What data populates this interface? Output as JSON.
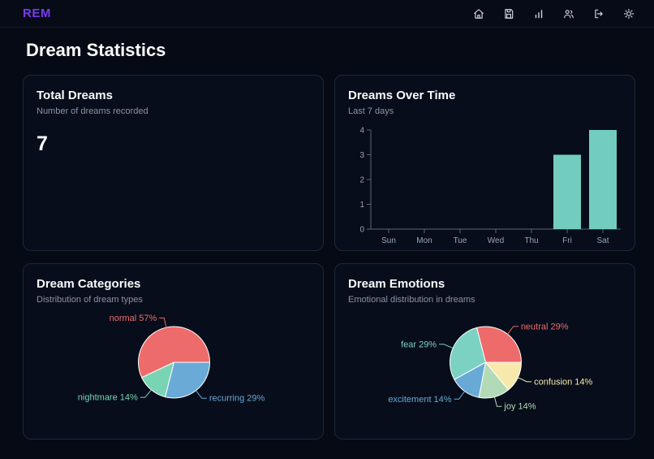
{
  "header": {
    "logo": "REM",
    "nav_icons": [
      "home-icon",
      "journal-icon",
      "stats-icon",
      "community-icon",
      "logout-icon",
      "theme-icon"
    ]
  },
  "page_title": "Dream Statistics",
  "cards": {
    "total": {
      "title": "Total Dreams",
      "subtitle": "Number of dreams recorded",
      "value": "7"
    },
    "over_time": {
      "title": "Dreams Over Time",
      "subtitle": "Last 7 days"
    },
    "categories": {
      "title": "Dream Categories",
      "subtitle": "Distribution of dream types"
    },
    "emotions": {
      "title": "Dream Emotions",
      "subtitle": "Emotional distribution in dreams"
    }
  },
  "colors": {
    "accent": "#7c3aed",
    "axis_line": "#5b6678",
    "axis_label": "#9aa5b8",
    "pie_stroke": "#ffffff"
  },
  "chart_data": [
    {
      "id": "dreams_over_time",
      "type": "bar",
      "title": "Dreams Over Time",
      "categories": [
        "Sun",
        "Mon",
        "Tue",
        "Wed",
        "Thu",
        "Fri",
        "Sat"
      ],
      "values": [
        0,
        0,
        0,
        0,
        0,
        3,
        4
      ],
      "ylim": [
        0,
        4
      ],
      "yticks": [
        0,
        1,
        2,
        3,
        4
      ],
      "bar_color": "#72cdc0",
      "grid": false,
      "legend": false
    },
    {
      "id": "dream_categories",
      "type": "pie",
      "title": "Dream Categories",
      "slices": [
        {
          "label": "normal",
          "pct": 57,
          "color": "#ee6b6b"
        },
        {
          "label": "nightmare",
          "pct": 14,
          "color": "#79d4b4"
        },
        {
          "label": "recurring",
          "pct": 29,
          "color": "#6aaad6"
        }
      ],
      "label_format": "{label} {pct}%"
    },
    {
      "id": "dream_emotions",
      "type": "pie",
      "title": "Dream Emotions",
      "slices": [
        {
          "label": "neutral",
          "pct": 29,
          "color": "#ee6b6b"
        },
        {
          "label": "fear",
          "pct": 29,
          "color": "#7bd2c3"
        },
        {
          "label": "excitement",
          "pct": 14,
          "color": "#68a9d6"
        },
        {
          "label": "joy",
          "pct": 14,
          "color": "#b3dab6"
        },
        {
          "label": "confusion",
          "pct": 14,
          "color": "#f7e9ab"
        }
      ],
      "label_format": "{label} {pct}%"
    }
  ]
}
